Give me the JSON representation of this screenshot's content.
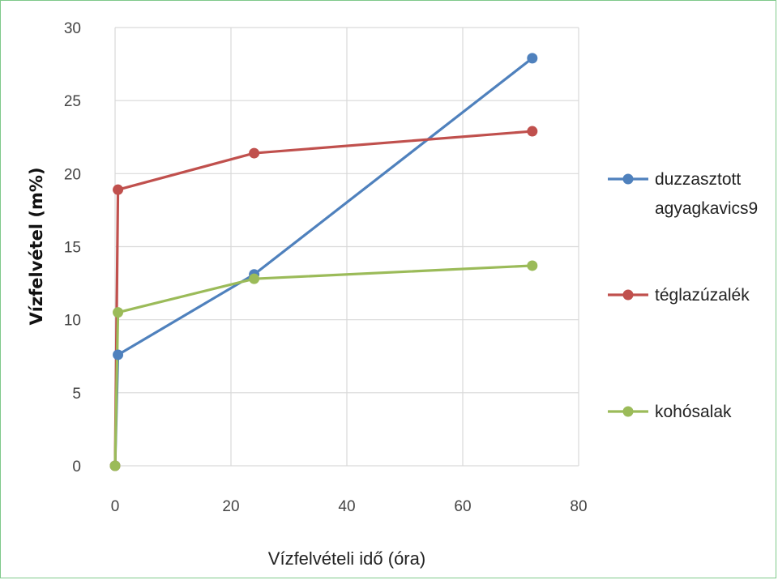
{
  "chart_data": {
    "type": "line",
    "title": "",
    "xlabel": "Vízfelvételi idő (óra)",
    "ylabel": "Vízfelvétel (m%)",
    "xlim": [
      0,
      80
    ],
    "ylim": [
      0,
      30
    ],
    "xticks": [
      0,
      20,
      40,
      60,
      80
    ],
    "yticks": [
      0,
      5,
      10,
      15,
      20,
      25,
      30
    ],
    "grid": true,
    "legend_position": "right",
    "series": [
      {
        "name": "duzzasztott agyagkavics9",
        "name_lines": [
          "duzzasztott",
          "agyagkavics9"
        ],
        "color": "#4f81bd",
        "x": [
          0,
          0.5,
          24,
          72
        ],
        "y": [
          0,
          7.6,
          13.1,
          27.9
        ]
      },
      {
        "name": "téglazúzalék",
        "name_lines": [
          "téglazúzalék"
        ],
        "color": "#c0504d",
        "x": [
          0,
          0.5,
          24,
          72
        ],
        "y": [
          0,
          18.9,
          21.4,
          22.9
        ]
      },
      {
        "name": "kohósalak",
        "name_lines": [
          "kohósalak"
        ],
        "color": "#9bbb59",
        "x": [
          0,
          0.5,
          24,
          72
        ],
        "y": [
          0,
          10.5,
          12.8,
          13.7
        ]
      }
    ]
  }
}
